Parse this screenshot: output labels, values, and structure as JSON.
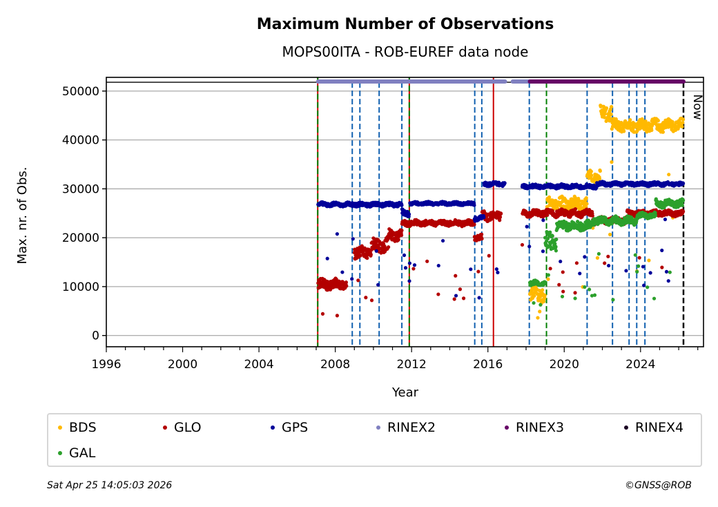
{
  "chart_data": {
    "type": "scatter",
    "title": "Maximum Number of Observations",
    "subtitle": "MOPS00ITA - ROB-EUREF data node",
    "xlabel": "Year",
    "ylabel": "Max. nr. of Obs.",
    "xlim": [
      1996,
      2027.3
    ],
    "ylim": [
      -2300,
      52800
    ],
    "x_ticks": [
      1996,
      2000,
      2004,
      2008,
      2012,
      2016,
      2020,
      2024
    ],
    "y_ticks": [
      0,
      10000,
      20000,
      30000,
      40000,
      50000
    ],
    "grid": "horizontal",
    "top_reference_line": 51800,
    "now_label": "Now",
    "series": [
      {
        "name": "BDS",
        "color": "#ffb900",
        "segments": [
          [
            2018.2,
            2019.0,
            8500,
            2000
          ],
          [
            2019.1,
            2021.2,
            27000,
            1500
          ],
          [
            2021.2,
            2021.9,
            32500,
            1500
          ],
          [
            2021.9,
            2022.5,
            45500,
            2000
          ],
          [
            2022.5,
            2026.25,
            43000,
            1500
          ]
        ]
      },
      {
        "name": "GLO",
        "color": "#b30000",
        "segments": [
          [
            2007.1,
            2008.6,
            10500,
            1300
          ],
          [
            2009.0,
            2009.9,
            17000,
            1500
          ],
          [
            2009.9,
            2010.8,
            18500,
            1800
          ],
          [
            2010.8,
            2011.5,
            20500,
            1300
          ],
          [
            2011.5,
            2015.3,
            23000,
            700
          ],
          [
            2015.3,
            2015.7,
            20000,
            700
          ],
          [
            2015.7,
            2016.7,
            24500,
            1200
          ],
          [
            2017.8,
            2021.5,
            25000,
            900
          ],
          [
            2021.5,
            2023.3,
            23500,
            900
          ],
          [
            2023.3,
            2026.25,
            25000,
            700
          ]
        ]
      },
      {
        "name": "GPS",
        "color": "#000099",
        "segments": [
          [
            2007.1,
            2011.5,
            26800,
            500
          ],
          [
            2011.5,
            2011.9,
            25000,
            900
          ],
          [
            2011.9,
            2015.3,
            27000,
            400
          ],
          [
            2015.3,
            2015.8,
            24000,
            600
          ],
          [
            2015.8,
            2016.9,
            31000,
            500
          ],
          [
            2017.8,
            2021.7,
            30500,
            500
          ],
          [
            2021.7,
            2026.25,
            31000,
            500
          ]
        ]
      },
      {
        "name": "GAL",
        "color": "#2ca02c",
        "segments": [
          [
            2018.2,
            2019.0,
            10700,
            600
          ],
          [
            2019.0,
            2019.6,
            19000,
            2500
          ],
          [
            2019.6,
            2021.5,
            22500,
            1200
          ],
          [
            2021.5,
            2023.8,
            23500,
            1000
          ],
          [
            2023.8,
            2024.8,
            24500,
            700
          ],
          [
            2024.8,
            2026.25,
            27000,
            1000
          ]
        ]
      }
    ],
    "file_format_bars": [
      {
        "name": "RINEX2",
        "color": "#8080c0",
        "ranges": [
          [
            2007.1,
            2016.9
          ],
          [
            2017.3,
            2018.2
          ]
        ]
      },
      {
        "name": "RINEX3",
        "color": "#660066",
        "ranges": [
          [
            2018.2,
            2026.25
          ]
        ]
      },
      {
        "name": "RINEX4",
        "color": "#1a0022",
        "ranges": []
      }
    ],
    "event_lines": [
      {
        "x": 2007.08,
        "style": "red-green-dashed"
      },
      {
        "x": 2008.89,
        "style": "blue-dashed"
      },
      {
        "x": 2009.29,
        "style": "blue-dashed"
      },
      {
        "x": 2010.3,
        "style": "blue-dashed"
      },
      {
        "x": 2011.49,
        "style": "blue-dashed"
      },
      {
        "x": 2011.88,
        "style": "red-green-dashed"
      },
      {
        "x": 2015.31,
        "style": "blue-dashed"
      },
      {
        "x": 2015.68,
        "style": "blue-dashed"
      },
      {
        "x": 2016.29,
        "style": "red-solid"
      },
      {
        "x": 2018.17,
        "style": "blue-dashed"
      },
      {
        "x": 2019.07,
        "style": "green-dashed"
      },
      {
        "x": 2021.2,
        "style": "blue-dashed"
      },
      {
        "x": 2022.53,
        "style": "blue-dashed"
      },
      {
        "x": 2023.4,
        "style": "blue-dashed"
      },
      {
        "x": 2023.8,
        "style": "blue-dashed"
      },
      {
        "x": 2024.23,
        "style": "blue-dashed"
      },
      {
        "x": 2026.25,
        "style": "now-black-dashed"
      }
    ]
  },
  "legend": {
    "items": [
      {
        "label": "BDS",
        "color": "#ffb900"
      },
      {
        "label": "GLO",
        "color": "#b30000"
      },
      {
        "label": "GPS",
        "color": "#000099"
      },
      {
        "label": "RINEX2",
        "color": "#8080c0"
      },
      {
        "label": "RINEX3",
        "color": "#660066"
      },
      {
        "label": "RINEX4",
        "color": "#1a0022"
      },
      {
        "label": "GAL",
        "color": "#2ca02c"
      }
    ]
  },
  "footer": {
    "timestamp": "Sat Apr 25 14:05:03 2026",
    "copyright": "©GNSS@ROB"
  }
}
